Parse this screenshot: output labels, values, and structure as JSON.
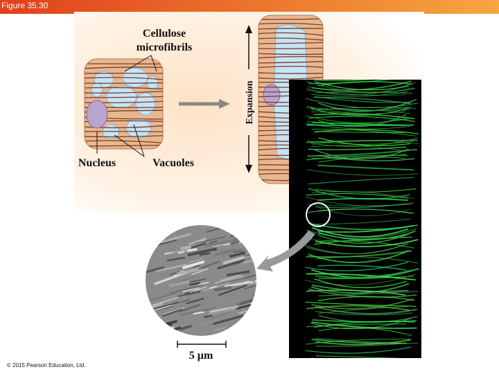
{
  "header": {
    "title": "Figure 35.30"
  },
  "labels": {
    "cellulose": [
      "Cellulose",
      "microfibrils"
    ],
    "nucleus": "Nucleus",
    "vacuoles": "Vacuoles",
    "expansion": "Expansion",
    "scale": "5 µm"
  },
  "footer": {
    "copyright": "© 2015 Pearson Education, Ltd."
  }
}
